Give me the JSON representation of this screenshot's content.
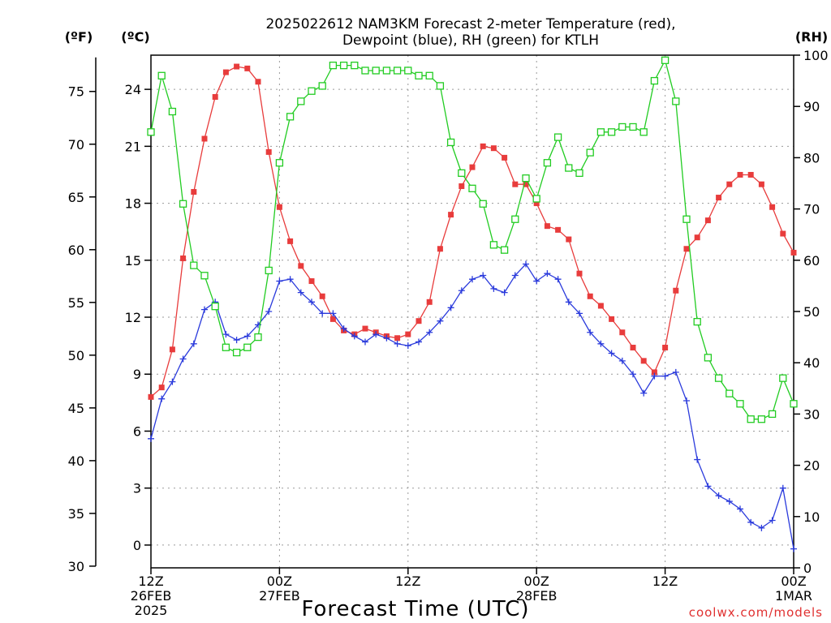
{
  "chart_data": {
    "type": "line",
    "title_line1": "2025022612 NAM3KM Forecast 2-meter Temperature (red),",
    "title_line2": "Dewpoint (blue), RH (green) for KTLH",
    "xlabel": "Forecast Time (UTC)",
    "credit": "coolwx.com/models",
    "units": {
      "fahrenheit": "(ºF)",
      "celsius": "(ºC)",
      "rh": "(RH)"
    },
    "x_range_hours": [
      0,
      60
    ],
    "x_ticks": [
      {
        "hour": 0,
        "lines": [
          "12Z",
          "26FEB",
          "2025"
        ]
      },
      {
        "hour": 12,
        "lines": [
          "00Z",
          "27FEB"
        ]
      },
      {
        "hour": 24,
        "lines": [
          "12Z"
        ]
      },
      {
        "hour": 36,
        "lines": [
          "00Z",
          "28FEB"
        ]
      },
      {
        "hour": 48,
        "lines": [
          "12Z"
        ]
      },
      {
        "hour": 60,
        "lines": [
          "00Z",
          "1MAR"
        ]
      }
    ],
    "y_left_f": {
      "ticks": [
        30,
        35,
        40,
        45,
        50,
        55,
        60,
        65,
        70,
        75
      ]
    },
    "y_left_c": {
      "range": [
        -1.2,
        25.8
      ],
      "ticks": [
        0,
        3,
        6,
        9,
        12,
        15,
        18,
        21,
        24
      ]
    },
    "y_right_rh": {
      "range": [
        0,
        100
      ],
      "ticks": [
        0,
        10,
        20,
        30,
        40,
        50,
        60,
        70,
        80,
        90,
        100
      ]
    },
    "grid": true,
    "series": [
      {
        "name": "2-meter Temperature",
        "axis": "celsius",
        "color": "#e83c3c",
        "marker": "filled-square",
        "x": [
          0,
          1,
          2,
          3,
          4,
          5,
          6,
          7,
          8,
          9,
          10,
          11,
          12,
          13,
          14,
          15,
          16,
          17,
          18,
          19,
          20,
          21,
          22,
          23,
          24,
          25,
          26,
          27,
          28,
          29,
          30,
          31,
          32,
          33,
          34,
          35,
          36,
          37,
          38,
          39,
          40,
          41,
          42,
          43,
          44,
          45,
          46,
          47,
          48,
          49,
          50,
          51,
          52,
          53,
          54,
          55,
          56,
          57,
          58,
          59,
          60
        ],
        "values": [
          7.8,
          8.3,
          10.3,
          15.1,
          18.6,
          21.4,
          23.6,
          24.9,
          25.2,
          25.1,
          24.4,
          20.7,
          17.8,
          16.0,
          14.7,
          13.9,
          13.1,
          11.9,
          11.3,
          11.1,
          11.4,
          11.2,
          11.0,
          10.9,
          11.1,
          11.8,
          12.8,
          15.6,
          17.4,
          18.9,
          19.9,
          21.0,
          20.9,
          20.4,
          19.0,
          19.0,
          18.0,
          16.8,
          16.6,
          16.1,
          14.3,
          13.1,
          12.6,
          11.9,
          11.2,
          10.4,
          9.7,
          9.1,
          10.4,
          13.4,
          15.6,
          16.2,
          17.1,
          18.3,
          19.0,
          19.5,
          19.5,
          19.0,
          17.8,
          16.4,
          15.4
        ],
        "note": ""
      },
      {
        "name": "Dewpoint",
        "axis": "celsius",
        "color": "#2a3adc",
        "marker": "plus",
        "x": [
          0,
          1,
          2,
          3,
          4,
          5,
          6,
          7,
          8,
          9,
          10,
          11,
          12,
          13,
          14,
          15,
          16,
          17,
          18,
          19,
          20,
          21,
          22,
          23,
          24,
          25,
          26,
          27,
          28,
          29,
          30,
          31,
          32,
          33,
          34,
          35,
          36,
          37,
          38,
          39,
          40,
          41,
          42,
          43,
          44,
          45,
          46,
          47,
          48,
          49,
          50,
          51,
          52,
          53,
          54,
          55,
          56,
          57,
          58,
          59,
          60
        ],
        "values": [
          5.6,
          7.7,
          8.6,
          9.8,
          10.6,
          12.4,
          12.8,
          11.1,
          10.8,
          11.0,
          11.6,
          12.3,
          13.9,
          14.0,
          13.3,
          12.8,
          12.2,
          12.2,
          11.4,
          11.0,
          10.7,
          11.1,
          10.9,
          10.6,
          10.5,
          10.7,
          11.2,
          11.8,
          12.5,
          13.4,
          14.0,
          14.2,
          13.5,
          13.3,
          14.2,
          14.8,
          13.9,
          14.3,
          14.0,
          12.8,
          12.2,
          11.2,
          10.6,
          10.1,
          9.7,
          9.0,
          8.0,
          8.9,
          8.9,
          9.1,
          7.6,
          4.5,
          3.1,
          2.6,
          2.3,
          1.9,
          1.2,
          0.9,
          1.3,
          3.0,
          -0.2
        ]
      },
      {
        "name": "RH",
        "axis": "rh",
        "color": "#22cc22",
        "marker": "open-square",
        "x": [
          0,
          1,
          2,
          3,
          4,
          5,
          6,
          7,
          8,
          9,
          10,
          11,
          12,
          13,
          14,
          15,
          16,
          17,
          18,
          19,
          20,
          21,
          22,
          23,
          24,
          25,
          26,
          27,
          28,
          29,
          30,
          31,
          32,
          33,
          34,
          35,
          36,
          37,
          38,
          39,
          40,
          41,
          42,
          43,
          44,
          45,
          46,
          47,
          48,
          49,
          50,
          51,
          52,
          53,
          54,
          55,
          56,
          57,
          58,
          59,
          60
        ],
        "values": [
          85,
          96,
          89,
          71,
          59,
          57,
          51,
          43,
          42,
          43,
          45,
          58,
          79,
          88,
          91,
          93,
          94,
          98,
          98,
          98,
          97,
          97,
          97,
          97,
          97,
          96,
          96,
          94,
          83,
          77,
          74,
          71,
          63,
          62,
          68,
          76,
          72,
          79,
          84,
          78,
          77,
          81,
          85,
          85,
          86,
          86,
          85,
          95,
          99,
          91,
          68,
          48,
          41,
          37,
          34,
          32,
          29,
          29,
          30,
          37,
          32
        ]
      }
    ]
  }
}
